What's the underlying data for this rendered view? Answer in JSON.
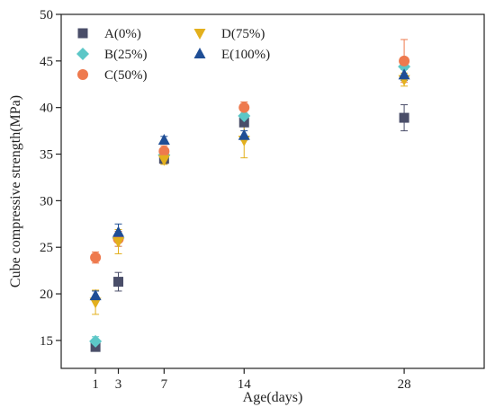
{
  "chart_data": {
    "type": "scatter",
    "xlabel": "Age(days)",
    "ylabel": "Cube compressive strength(MPa)",
    "xlim": [
      -2,
      35
    ],
    "ylim": [
      12,
      50
    ],
    "x_ticks": [
      1,
      3,
      7,
      14,
      28
    ],
    "y_ticks": [
      15,
      20,
      25,
      30,
      35,
      40,
      45,
      50
    ],
    "legend_position": "top-left",
    "grid": false,
    "series": [
      {
        "name": "A(0%)",
        "marker": "square",
        "color": "#4a4e69",
        "x": [
          1,
          3,
          7,
          14,
          28
        ],
        "y": [
          14.3,
          21.3,
          34.5,
          38.4,
          38.9
        ],
        "err": [
          0.4,
          1.0,
          0.5,
          1.5,
          1.4
        ]
      },
      {
        "name": "B(25%)",
        "marker": "diamond",
        "color": "#5cc7c7",
        "x": [
          1,
          3,
          7,
          14,
          28
        ],
        "y": [
          14.9,
          26.0,
          34.9,
          39.1,
          44.4
        ],
        "err": [
          0.5,
          0.9,
          0.6,
          0.6,
          0.9
        ]
      },
      {
        "name": "C(50%)",
        "marker": "circle",
        "color": "#ee7a4e",
        "x": [
          1,
          3,
          7,
          14,
          28
        ],
        "y": [
          23.9,
          25.9,
          35.3,
          40.0,
          45.0
        ],
        "err": [
          0.6,
          0.8,
          0.6,
          0.6,
          2.3
        ]
      },
      {
        "name": "D(75%)",
        "marker": "triangle-down",
        "color": "#e3b01d",
        "x": [
          1,
          3,
          7,
          14,
          28
        ],
        "y": [
          19.1,
          25.6,
          34.4,
          36.5,
          43.0
        ],
        "err": [
          1.3,
          1.3,
          0.5,
          1.9,
          0.7
        ]
      },
      {
        "name": "E(100%)",
        "marker": "triangle-up",
        "color": "#1f4e96",
        "x": [
          1,
          3,
          7,
          14,
          28
        ],
        "y": [
          19.8,
          26.6,
          36.5,
          37.0,
          43.5
        ],
        "err": [
          0.5,
          0.9,
          0.4,
          0.5,
          0.6
        ]
      }
    ]
  }
}
